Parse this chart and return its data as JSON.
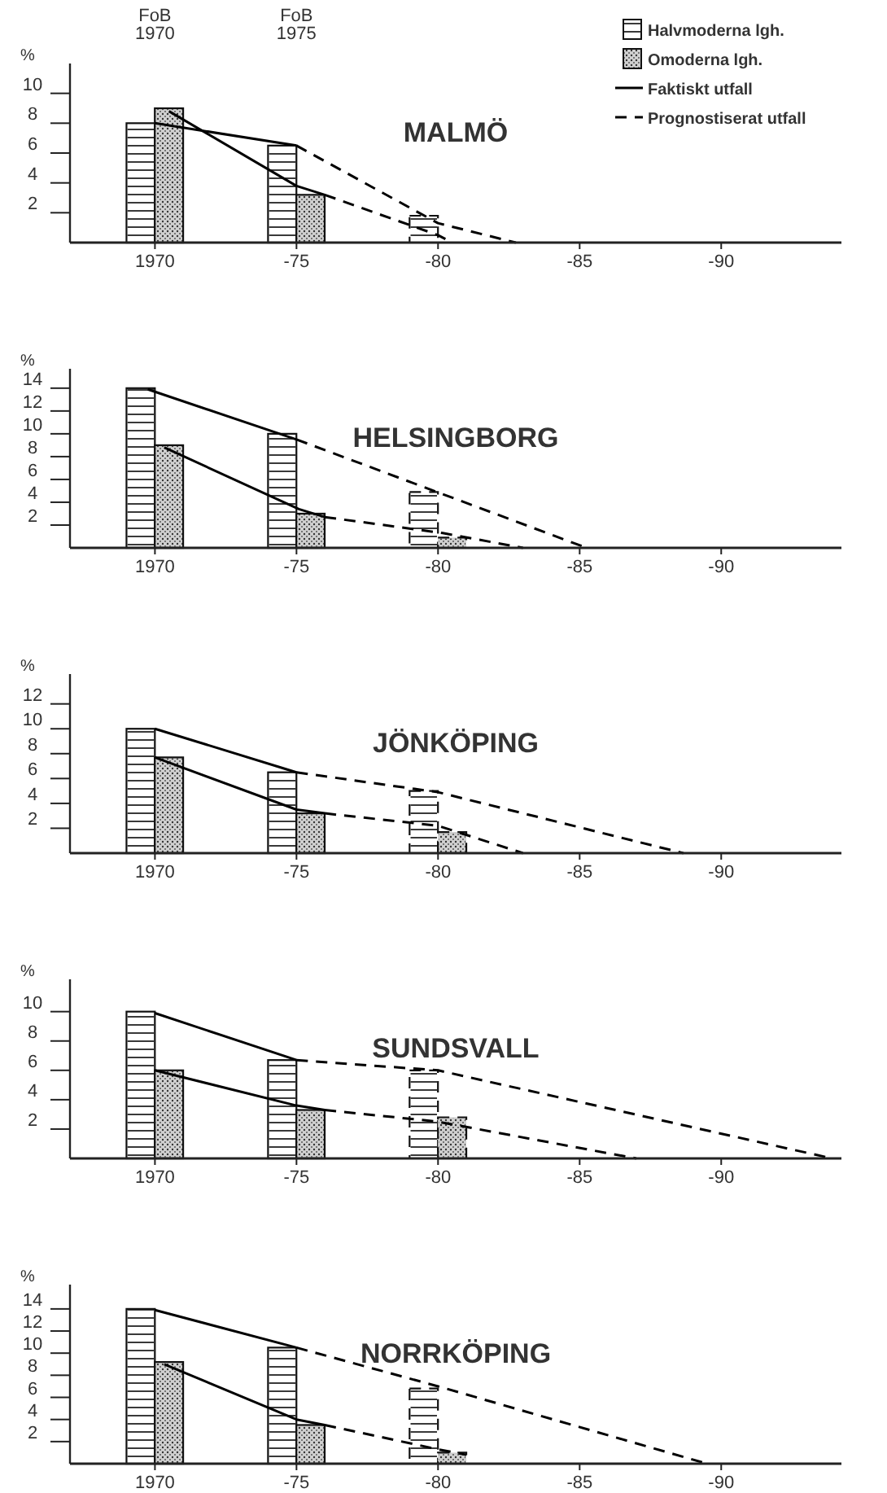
{
  "chart_data": [
    {
      "type": "bar",
      "title": "MALMÖ",
      "ylabel": "%",
      "xlim": [
        "1967",
        "1994-04"
      ],
      "xticks": [
        {
          "value": "1970",
          "label": "1970"
        },
        {
          "value": "1975",
          "label": "-75"
        },
        {
          "value": "1980",
          "label": "-80"
        },
        {
          "value": "1985",
          "label": "-85"
        },
        {
          "value": "1990",
          "label": "-90"
        }
      ],
      "ylim": [
        0,
        12
      ],
      "yticks": [
        2,
        4,
        6,
        8,
        10
      ],
      "legend": "top right",
      "annotations": [
        "FoB 1970",
        "FoB 1975"
      ],
      "series": [
        {
          "name": "Halvmoderna lgh.",
          "color": "#ffffff",
          "x": [
            "1969-07",
            "1974-07"
          ],
          "values": [
            8,
            6.5
          ]
        },
        {
          "name": "Omoderna lgh.",
          "color": "#d0d0d0",
          "x": [
            "1970-07",
            "1975-07"
          ],
          "values": [
            9,
            3.2
          ]
        },
        {
          "color": "#ffffff",
          "line_style": "dashed",
          "x": [
            "1979-07"
          ],
          "values": [
            1.8
          ]
        },
        {
          "type": "line",
          "name": "Faktiskt utfall",
          "color": "#000000",
          "line_style": "solid",
          "x": [
            "1970",
            "1975"
          ],
          "values": [
            8,
            6.5
          ]
        },
        {
          "type": "line",
          "color": "#000000",
          "line_style": "solid",
          "x": [
            "1970-07",
            "1975",
            "1976"
          ],
          "values": [
            8.8,
            3.8,
            3.2
          ]
        },
        {
          "type": "line",
          "name": "Prognostiserat utfall",
          "color": "#000000",
          "line_style": "dashed",
          "x": [
            "1975",
            "1980",
            "1982-10"
          ],
          "values": [
            6.5,
            1.3,
            0
          ]
        },
        {
          "type": "line",
          "color": "#000000",
          "line_style": "dashed",
          "x": [
            "1976",
            "1980",
            "1980-07"
          ],
          "values": [
            3.2,
            0.5,
            0
          ]
        }
      ]
    },
    {
      "type": "bar",
      "title": "HELSINGBORG",
      "ylabel": "%",
      "xlim": [
        "1967",
        "1994-04"
      ],
      "xticks": [
        {
          "value": "1970",
          "label": "1970"
        },
        {
          "value": "1975",
          "label": "-75"
        },
        {
          "value": "1980",
          "label": "-80"
        },
        {
          "value": "1985",
          "label": "-85"
        },
        {
          "value": "1990",
          "label": "-90"
        }
      ],
      "ylim": [
        0,
        15.7
      ],
      "yticks": [
        2,
        4,
        6,
        8,
        10,
        12,
        14
      ],
      "series": [
        {
          "color": "#ffffff",
          "x": [
            "1969-07",
            "1974-07"
          ],
          "values": [
            14,
            10
          ]
        },
        {
          "color": "#d0d0d0",
          "x": [
            "1970-07",
            "1975-07"
          ],
          "values": [
            9,
            3
          ]
        },
        {
          "color": "#ffffff",
          "line_style": "dashed",
          "x": [
            "1979-07"
          ],
          "values": [
            4.9
          ]
        },
        {
          "color": "#d0d0d0",
          "line_style": "dashed",
          "x": [
            "1980-07"
          ],
          "values": [
            0.9
          ]
        },
        {
          "type": "line",
          "color": "#000000",
          "line_style": "solid",
          "x": [
            "1969-10",
            "1975"
          ],
          "values": [
            13.9,
            9.5
          ]
        },
        {
          "type": "line",
          "color": "#000000",
          "line_style": "solid",
          "x": [
            "1970-05",
            "1975-02",
            "1976"
          ],
          "values": [
            8.8,
            3.4,
            2.7
          ]
        },
        {
          "type": "line",
          "color": "#000000",
          "line_style": "dashed",
          "x": [
            "1975",
            "1985-04"
          ],
          "values": [
            9.5,
            0
          ]
        },
        {
          "type": "line",
          "color": "#000000",
          "line_style": "dashed",
          "x": [
            "1976",
            "1980-03",
            "1983"
          ],
          "values": [
            2.7,
            1.3,
            0
          ]
        }
      ]
    },
    {
      "type": "bar",
      "title": "JÖNKÖPING",
      "ylabel": "%",
      "xlim": [
        "1967",
        "1994-04"
      ],
      "xticks": [
        {
          "value": "1970",
          "label": "1970"
        },
        {
          "value": "1975",
          "label": "-75"
        },
        {
          "value": "1980",
          "label": "-80"
        },
        {
          "value": "1985",
          "label": "-85"
        },
        {
          "value": "1990",
          "label": "-90"
        }
      ],
      "ylim": [
        0,
        14.4
      ],
      "yticks": [
        2,
        4,
        6,
        8,
        10,
        12
      ],
      "series": [
        {
          "color": "#ffffff",
          "x": [
            "1969-07",
            "1974-07"
          ],
          "values": [
            10,
            6.5
          ]
        },
        {
          "color": "#d0d0d0",
          "x": [
            "1970-07",
            "1975-07"
          ],
          "values": [
            7.7,
            3.2
          ]
        },
        {
          "color": "#ffffff",
          "line_style": "dashed",
          "x": [
            "1979-07"
          ],
          "values": [
            5
          ]
        },
        {
          "color": "#d0d0d0",
          "line_style": "dashed",
          "x": [
            "1980-07"
          ],
          "values": [
            1.7
          ]
        },
        {
          "type": "line",
          "color": "#000000",
          "line_style": "solid",
          "x": [
            "1970",
            "1975"
          ],
          "values": [
            10,
            6.5
          ]
        },
        {
          "type": "line",
          "color": "#000000",
          "line_style": "solid",
          "x": [
            "1970",
            "1975",
            "1976"
          ],
          "values": [
            7.7,
            3.5,
            3.2
          ]
        },
        {
          "type": "line",
          "color": "#000000",
          "line_style": "dashed",
          "x": [
            "1975",
            "1980",
            "1988-09"
          ],
          "values": [
            6.5,
            4.9,
            0
          ]
        },
        {
          "type": "line",
          "color": "#000000",
          "line_style": "dashed",
          "x": [
            "1976",
            "1980",
            "1983"
          ],
          "values": [
            3.2,
            2.2,
            0
          ]
        }
      ]
    },
    {
      "type": "bar",
      "title": "SUNDSVALL",
      "ylabel": "%",
      "xlim": [
        "1967",
        "1994-04"
      ],
      "xticks": [
        {
          "value": "1970",
          "label": "1970"
        },
        {
          "value": "1975",
          "label": "-75"
        },
        {
          "value": "1980",
          "label": "-80"
        },
        {
          "value": "1985",
          "label": "-85"
        },
        {
          "value": "1990",
          "label": "-90"
        }
      ],
      "ylim": [
        0,
        12.2
      ],
      "yticks": [
        2,
        4,
        6,
        8,
        10
      ],
      "series": [
        {
          "color": "#ffffff",
          "x": [
            "1969-07",
            "1974-07"
          ],
          "values": [
            10,
            6.7
          ]
        },
        {
          "color": "#d0d0d0",
          "x": [
            "1970-07",
            "1975-07"
          ],
          "values": [
            6,
            3.3
          ]
        },
        {
          "color": "#ffffff",
          "line_style": "dashed",
          "x": [
            "1979-07"
          ],
          "values": [
            6
          ]
        },
        {
          "color": "#d0d0d0",
          "line_style": "dashed",
          "x": [
            "1980-07"
          ],
          "values": [
            2.8
          ]
        },
        {
          "type": "line",
          "color": "#000000",
          "line_style": "solid",
          "x": [
            "1970",
            "1975"
          ],
          "values": [
            9.9,
            6.7
          ]
        },
        {
          "type": "line",
          "color": "#000000",
          "line_style": "solid",
          "x": [
            "1970",
            "1975",
            "1976"
          ],
          "values": [
            6,
            3.6,
            3.3
          ]
        },
        {
          "type": "line",
          "color": "#000000",
          "line_style": "dashed",
          "x": [
            "1975",
            "1980",
            "1993-12"
          ],
          "values": [
            6.7,
            6,
            0
          ]
        },
        {
          "type": "line",
          "color": "#000000",
          "line_style": "dashed",
          "x": [
            "1976",
            "1980",
            "1987"
          ],
          "values": [
            3.3,
            2.5,
            0
          ]
        }
      ]
    },
    {
      "type": "bar",
      "title": "NORRKÖPING",
      "ylabel": "%",
      "xlim": [
        "1967",
        "1994-04"
      ],
      "xticks": [
        {
          "value": "1970",
          "label": "1970"
        },
        {
          "value": "1975",
          "label": "-75"
        },
        {
          "value": "1980",
          "label": "-80"
        },
        {
          "value": "1985",
          "label": "-85"
        },
        {
          "value": "1990",
          "label": "-90"
        }
      ],
      "ylim": [
        0,
        16.2
      ],
      "yticks": [
        2,
        4,
        6,
        8,
        10,
        12,
        14
      ],
      "series": [
        {
          "color": "#ffffff",
          "x": [
            "1969-07",
            "1974-07"
          ],
          "values": [
            14,
            10.5
          ]
        },
        {
          "color": "#d0d0d0",
          "x": [
            "1970-07",
            "1975-07"
          ],
          "values": [
            9.2,
            3.5
          ]
        },
        {
          "color": "#ffffff",
          "line_style": "dashed",
          "x": [
            "1979-07"
          ],
          "values": [
            6.8
          ]
        },
        {
          "color": "#d0d0d0",
          "line_style": "dashed",
          "x": [
            "1980-07"
          ],
          "values": [
            1
          ]
        },
        {
          "type": "line",
          "color": "#000000",
          "line_style": "solid",
          "x": [
            "1970",
            "1975"
          ],
          "values": [
            13.9,
            10.5
          ]
        },
        {
          "type": "line",
          "color": "#000000",
          "line_style": "solid",
          "x": [
            "1970-05",
            "1975",
            "1976"
          ],
          "values": [
            9,
            4,
            3.5
          ]
        },
        {
          "type": "line",
          "color": "#000000",
          "line_style": "dashed",
          "x": [
            "1975",
            "1980",
            "1989-07"
          ],
          "values": [
            10.5,
            7,
            0
          ]
        },
        {
          "type": "line",
          "color": "#000000",
          "line_style": "dashed",
          "x": [
            "1976",
            "1980",
            "1981"
          ],
          "values": [
            3.5,
            1.3,
            0.8
          ]
        }
      ]
    }
  ]
}
